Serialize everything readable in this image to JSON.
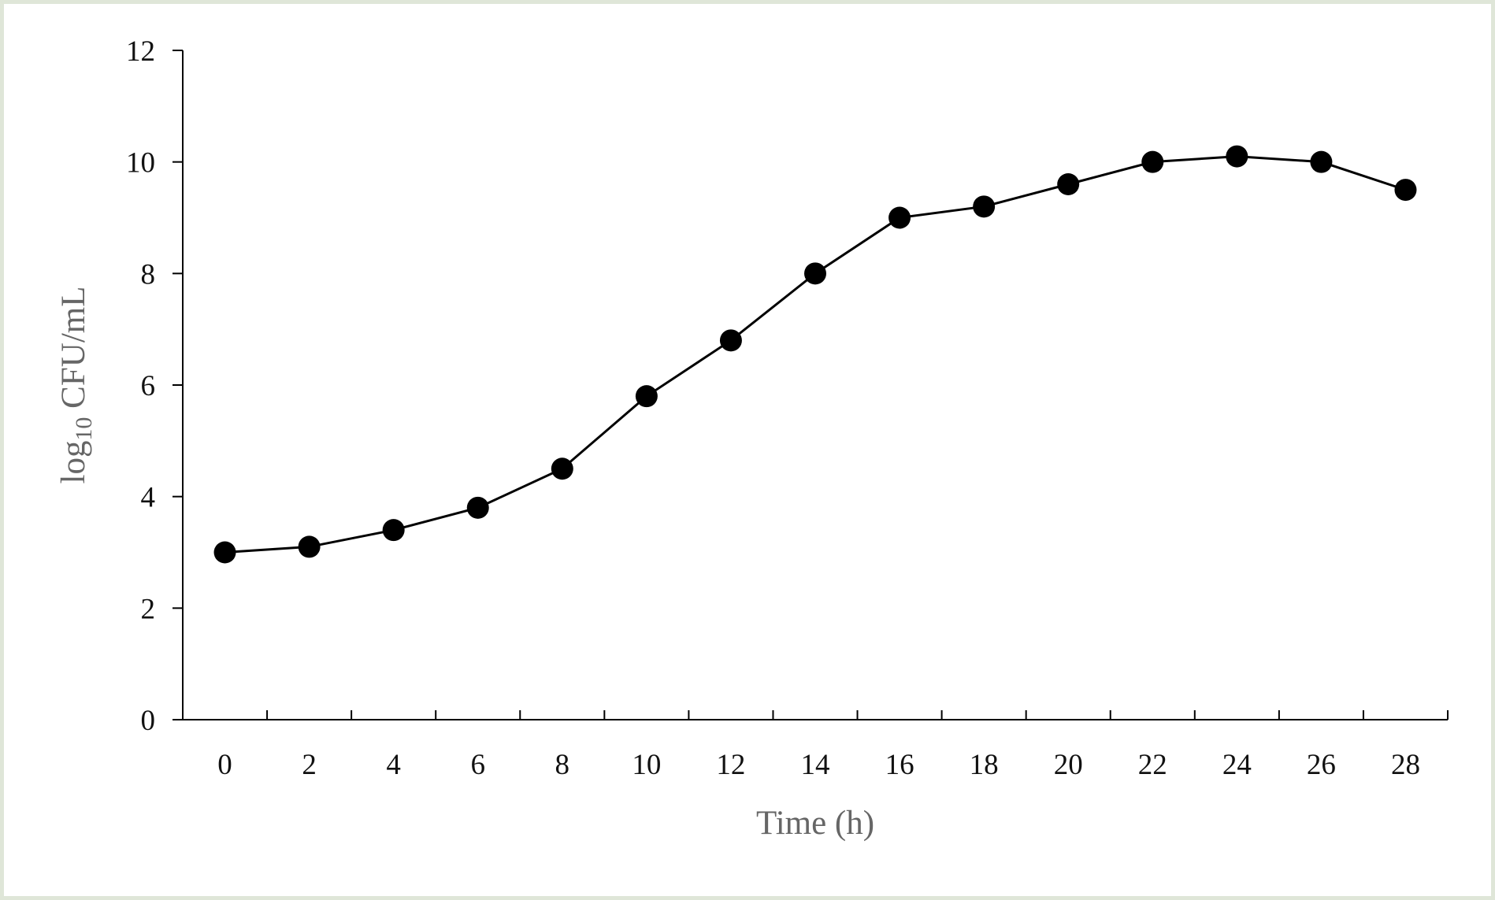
{
  "chart_data": {
    "type": "line",
    "xlabel": "Time (h)",
    "ylabel": {
      "prefix": "log",
      "subscript": "10",
      "suffix": " CFU/mL"
    },
    "x": [
      0,
      2,
      4,
      6,
      8,
      10,
      12,
      14,
      16,
      18,
      20,
      22,
      24,
      26,
      28
    ],
    "series": [
      {
        "values": [
          3.0,
          3.1,
          3.4,
          3.8,
          4.5,
          5.8,
          6.8,
          8.0,
          9.0,
          9.2,
          9.6,
          10.0,
          10.1,
          10.0,
          9.5
        ],
        "color": "#000000",
        "marker": "filled-circle"
      }
    ],
    "ylim": [
      0,
      12
    ],
    "yticks": [
      "0",
      "2",
      "4",
      "6",
      "8",
      "10",
      "12"
    ],
    "xticks": [
      "0",
      "2",
      "4",
      "6",
      "8",
      "10",
      "12",
      "14",
      "16",
      "18",
      "20",
      "22",
      "24",
      "26",
      "28"
    ],
    "grid": false,
    "legend": false
  },
  "colors": {
    "frame_border": "#dfe6d8",
    "axis_title": "#666666",
    "series": "#000000"
  }
}
